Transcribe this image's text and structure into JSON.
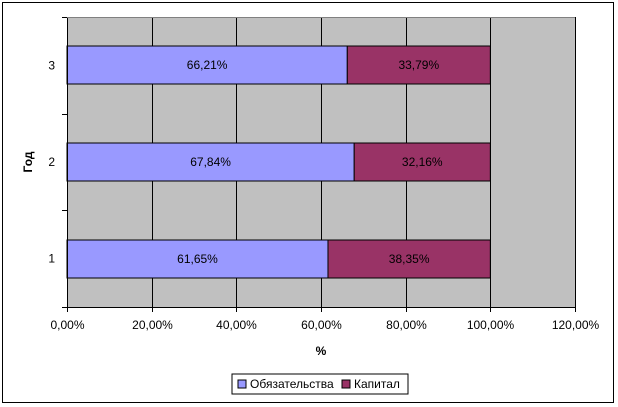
{
  "chart_data": {
    "type": "bar",
    "orientation": "horizontal",
    "stacked": true,
    "xlabel": "%",
    "ylabel": "Год",
    "xlim": [
      0,
      120
    ],
    "x_ticks": [
      "0,00%",
      "20,00%",
      "40,00%",
      "60,00%",
      "80,00%",
      "100,00%",
      "120,00%"
    ],
    "categories": [
      "1",
      "2",
      "3"
    ],
    "series": [
      {
        "name": "Обязательства",
        "color": "#9999ff",
        "values": [
          61.65,
          67.84,
          66.21
        ],
        "labels": [
          "61,65%",
          "67,84%",
          "66,21%"
        ]
      },
      {
        "name": "Капитал",
        "color": "#993366",
        "values": [
          38.35,
          32.16,
          33.79
        ],
        "labels": [
          "38,35%",
          "32,16%",
          "33,79%"
        ]
      }
    ],
    "grid": true,
    "legend": "bottom"
  }
}
